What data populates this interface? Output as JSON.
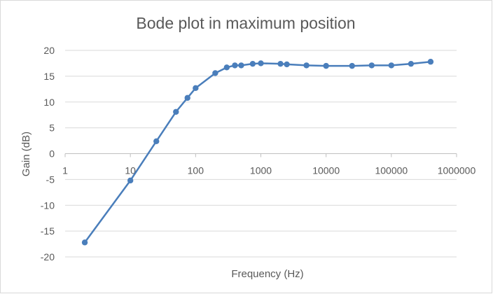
{
  "chart_data": {
    "type": "line",
    "title": "Bode plot in maximum position",
    "xlabel": "Frequency (Hz)",
    "ylabel": "Gain (dB)",
    "x_scale": "log",
    "xlim": [
      1,
      1000000
    ],
    "ylim": [
      -20,
      20
    ],
    "x_ticks": [
      "1",
      "10",
      "100",
      "1000",
      "10000",
      "100000",
      "1000000"
    ],
    "y_ticks": [
      "20",
      "15",
      "10",
      "5",
      "0",
      "-5",
      "-10",
      "-15",
      "-20"
    ],
    "grid": "horizontal",
    "legend": "none",
    "markers": true,
    "series_color": "#4a7ebb",
    "series": [
      {
        "x": [
          2,
          10,
          25,
          50,
          75,
          100,
          200,
          300,
          400,
          500,
          750,
          1000,
          2000,
          2500,
          5000,
          10000,
          25000,
          50000,
          100000,
          200000,
          400000
        ],
        "y": [
          -17.2,
          -5.2,
          2.4,
          8.1,
          10.8,
          12.7,
          15.6,
          16.7,
          17.1,
          17.1,
          17.4,
          17.5,
          17.4,
          17.3,
          17.1,
          17.0,
          17.0,
          17.1,
          17.1,
          17.4,
          17.8
        ]
      }
    ]
  }
}
